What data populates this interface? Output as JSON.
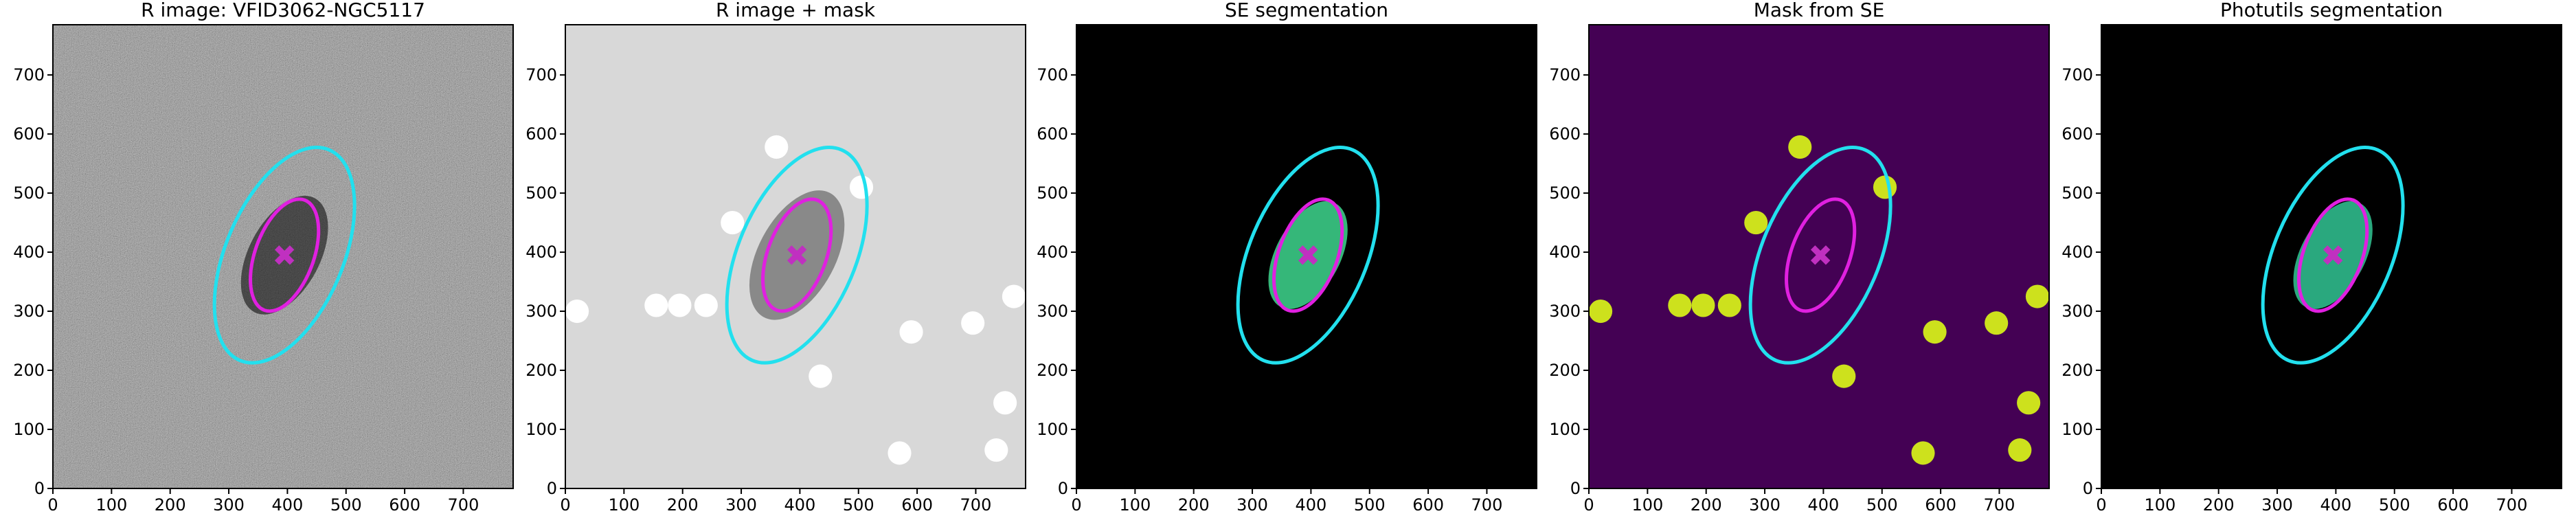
{
  "chart_data": [
    {
      "type": "image",
      "title": "R image: VFID3062-NGC5117",
      "background": "noise",
      "xlim": [
        0,
        785
      ],
      "ylim": [
        0,
        785
      ],
      "xticks": [
        0,
        100,
        200,
        300,
        400,
        500,
        600,
        700
      ],
      "yticks": [
        0,
        100,
        200,
        300,
        400,
        500,
        600,
        700
      ]
    },
    {
      "type": "image",
      "title": "R image + mask",
      "background": "#d8d8d8",
      "mask_color": "#ffffff",
      "xlim": [
        0,
        785
      ],
      "ylim": [
        0,
        785
      ],
      "xticks": [
        0,
        100,
        200,
        300,
        400,
        500,
        600,
        700
      ],
      "yticks": [
        0,
        100,
        200,
        300,
        400,
        500,
        600,
        700
      ]
    },
    {
      "type": "image",
      "title": "SE segmentation",
      "background": "#000000",
      "segment_color": "#35b779",
      "xlim": [
        0,
        785
      ],
      "ylim": [
        0,
        785
      ],
      "xticks": [
        0,
        100,
        200,
        300,
        400,
        500,
        600,
        700
      ],
      "yticks": [
        0,
        100,
        200,
        300,
        400,
        500,
        600,
        700
      ]
    },
    {
      "type": "image",
      "title": "Mask from SE",
      "background": "#440154",
      "mask_color": "#cde11d",
      "xlim": [
        0,
        785
      ],
      "ylim": [
        0,
        785
      ],
      "xticks": [
        0,
        100,
        200,
        300,
        400,
        500,
        600,
        700
      ],
      "yticks": [
        0,
        100,
        200,
        300,
        400,
        500,
        600,
        700
      ]
    },
    {
      "type": "image",
      "title": "Photutils segmentation",
      "background": "#000000",
      "segment_color": "#2aa87e",
      "xlim": [
        0,
        785
      ],
      "ylim": [
        0,
        785
      ],
      "xticks": [
        0,
        100,
        200,
        300,
        400,
        500,
        600,
        700
      ],
      "yticks": [
        0,
        100,
        200,
        300,
        400,
        500,
        600,
        700
      ]
    }
  ],
  "overlay": {
    "center": [
      395,
      395
    ],
    "marker_color": "#c030c0",
    "ellipses": [
      {
        "color": "#22e0ee",
        "a": 195,
        "b": 100,
        "angle": 67
      },
      {
        "color": "#e020e0",
        "a": 100,
        "b": 50,
        "angle": 70
      }
    ],
    "segment": {
      "a": 100,
      "b": 55,
      "angle": 62
    },
    "mask_circles": [
      [
        20,
        300,
        20
      ],
      [
        155,
        310,
        20
      ],
      [
        195,
        310,
        20
      ],
      [
        240,
        310,
        20
      ],
      [
        285,
        450,
        20
      ],
      [
        360,
        578,
        20
      ],
      [
        435,
        190,
        20
      ],
      [
        505,
        510,
        20
      ],
      [
        570,
        60,
        20
      ],
      [
        590,
        265,
        20
      ],
      [
        695,
        280,
        20
      ],
      [
        735,
        65,
        20
      ],
      [
        765,
        325,
        20
      ],
      [
        750,
        145,
        20
      ]
    ]
  }
}
